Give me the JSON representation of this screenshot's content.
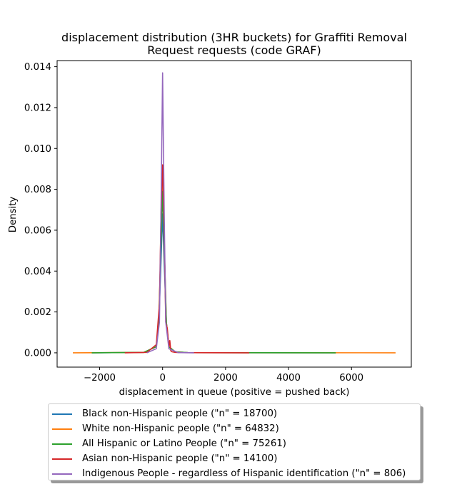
{
  "chart_data": {
    "type": "line",
    "title": "displacement distribution (3HR buckets) for Graffiti Removal\nRequest requests (code GRAF)",
    "xlabel": "displacement in queue (positive = pushed back)",
    "ylabel": "Density",
    "xlim": [
      -3350,
      7900
    ],
    "ylim": [
      -0.0007,
      0.0143
    ],
    "xticks": [
      -2000,
      0,
      2000,
      4000,
      6000
    ],
    "xtick_labels": [
      "−2000",
      "0",
      "2000",
      "4000",
      "6000"
    ],
    "yticks": [
      0.0,
      0.002,
      0.004,
      0.006,
      0.008,
      0.01,
      0.012,
      0.014
    ],
    "ytick_labels": [
      "0.000",
      "0.002",
      "0.004",
      "0.006",
      "0.008",
      "0.010",
      "0.012",
      "0.014"
    ],
    "legend_position": "below plot",
    "series": [
      {
        "name": "Black non-Hispanic people (\"n\" = 18700)",
        "color": "#1f77b4",
        "x": [
          -2250,
          -600,
          -200,
          -120,
          -60,
          0,
          60,
          120,
          200,
          400,
          800,
          5500
        ],
        "y": [
          0,
          2e-05,
          0.0003,
          0.0015,
          0.004,
          0.0068,
          0.004,
          0.0015,
          0.0003,
          5e-05,
          1e-05,
          0
        ]
      },
      {
        "name": "White non-Hispanic people (\"n\" = 64832)",
        "color": "#ff7f0e",
        "x": [
          -2850,
          -600,
          -200,
          -120,
          -60,
          0,
          60,
          120,
          200,
          400,
          800,
          7400
        ],
        "y": [
          0,
          2e-05,
          0.0003,
          0.0015,
          0.005,
          0.0082,
          0.005,
          0.0015,
          0.0003,
          5e-05,
          1e-05,
          0
        ]
      },
      {
        "name": "All Hispanic or Latino People (\"n\" = 75261)",
        "color": "#2ca02c",
        "x": [
          -2250,
          -600,
          -200,
          -120,
          -60,
          0,
          60,
          120,
          200,
          400,
          800,
          5500
        ],
        "y": [
          0,
          2e-05,
          0.0003,
          0.0015,
          0.0048,
          0.0079,
          0.0048,
          0.0015,
          0.0003,
          5e-05,
          1e-05,
          0
        ]
      },
      {
        "name": "Asian non-Hispanic people (\"n\" = 14100)",
        "color": "#d62728",
        "x": [
          -1200,
          -500,
          -200,
          -100,
          -50,
          0,
          50,
          100,
          150,
          200,
          230,
          260,
          300,
          400,
          600,
          2750
        ],
        "y": [
          0,
          2e-05,
          0.0004,
          0.0024,
          0.0068,
          0.0092,
          0.006,
          0.0015,
          0.0012,
          0.0003,
          0.0006,
          0.0001,
          5e-05,
          2e-05,
          1e-05,
          0
        ]
      },
      {
        "name": "Indigenous People - regardless of Hispanic identification (\"n\" = 806)",
        "color": "#9467bd",
        "x": [
          -500,
          -200,
          -100,
          -50,
          0,
          50,
          100,
          200,
          500,
          1000
        ],
        "y": [
          0,
          0.0002,
          0.0015,
          0.007,
          0.0137,
          0.007,
          0.0015,
          0.0002,
          1e-05,
          0
        ]
      }
    ]
  }
}
